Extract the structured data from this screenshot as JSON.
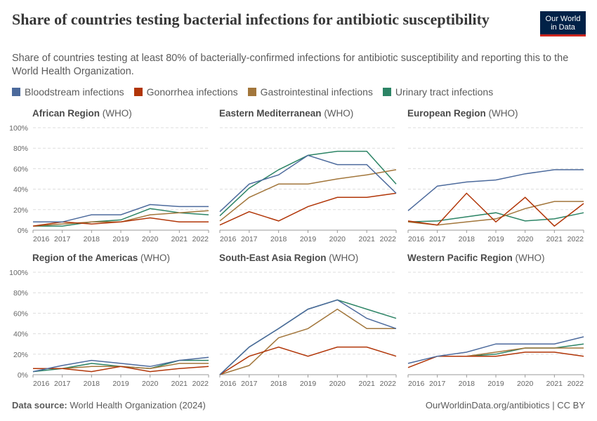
{
  "title": "Share of countries testing bacterial infections for antibiotic susceptibility",
  "subtitle": "Share of countries testing at least 80% of bacterially-confirmed infections for antibiotic susceptibility and reporting this to the World Health Organization.",
  "logo": {
    "line1": "Our World",
    "line2": "in Data"
  },
  "footer": {
    "source_label": "Data source:",
    "source": "World Health Organization (2024)",
    "url": "OurWorldinData.org/antibiotics | CC BY"
  },
  "chart_data": {
    "type": "line",
    "x": [
      2016,
      2017,
      2018,
      2019,
      2020,
      2021,
      2022
    ],
    "x_tick_labels": [
      "2016",
      "2017",
      "2018",
      "2019",
      "2020",
      "2021",
      "2022"
    ],
    "ylim": [
      0,
      100
    ],
    "y_ticks": [
      "0%",
      "20%",
      "40%",
      "60%",
      "80%",
      "100%"
    ],
    "grid": "horizontal dashed",
    "legend_position": "top",
    "series_names": [
      "Bloodstream infections",
      "Gonorrhea infections",
      "Gastrointestinal infections",
      "Urinary tract infections"
    ],
    "colors": [
      "#4c6a9c",
      "#b13507",
      "#a2763b",
      "#2c8465"
    ],
    "panels": [
      {
        "name": "African Region",
        "suffix": " (WHO)",
        "series": [
          [
            8,
            8,
            15,
            15,
            25,
            23,
            23
          ],
          [
            4,
            8,
            6,
            8,
            12,
            8,
            8
          ],
          [
            4,
            6,
            8,
            8,
            15,
            17,
            19
          ],
          [
            4,
            4,
            8,
            10,
            21,
            17,
            15
          ]
        ]
      },
      {
        "name": "Eastern Mediterranean",
        "suffix": " (WHO)",
        "series": [
          [
            18,
            45,
            54,
            73,
            64,
            64,
            36
          ],
          [
            5,
            18,
            9,
            23,
            32,
            32,
            36
          ],
          [
            9,
            32,
            45,
            45,
            50,
            54,
            59
          ],
          [
            14,
            41,
            59,
            73,
            77,
            77,
            45
          ]
        ]
      },
      {
        "name": "European Region",
        "suffix": " (WHO)",
        "series": [
          [
            19,
            43,
            47,
            49,
            55,
            59,
            59
          ],
          [
            9,
            5,
            36,
            8,
            32,
            4,
            26
          ],
          [
            8,
            5,
            8,
            11,
            21,
            28,
            28
          ],
          [
            8,
            9,
            13,
            17,
            9,
            11,
            17
          ]
        ]
      },
      {
        "name": "Region of the Americas",
        "suffix": " (WHO)",
        "series": [
          [
            3,
            9,
            14,
            11,
            8,
            14,
            17
          ],
          [
            6,
            6,
            3,
            8,
            3,
            6,
            8
          ],
          [
            6,
            6,
            8,
            8,
            6,
            11,
            11
          ],
          [
            3,
            6,
            11,
            8,
            6,
            14,
            14
          ]
        ]
      },
      {
        "name": "South-East Asia Region",
        "suffix": " (WHO)",
        "series": [
          [
            0,
            27,
            45,
            64,
            73,
            55,
            45
          ],
          [
            0,
            18,
            27,
            18,
            27,
            27,
            18
          ],
          [
            0,
            9,
            36,
            45,
            64,
            45,
            45
          ],
          [
            0,
            27,
            45,
            64,
            73,
            64,
            55
          ]
        ]
      },
      {
        "name": "Western Pacific Region",
        "suffix": " (WHO)",
        "series": [
          [
            11,
            18,
            22,
            30,
            30,
            30,
            37
          ],
          [
            7,
            18,
            18,
            18,
            22,
            22,
            18
          ],
          [
            null,
            18,
            18,
            22,
            26,
            26,
            26
          ],
          [
            null,
            18,
            18,
            20,
            26,
            26,
            30
          ]
        ]
      }
    ]
  }
}
